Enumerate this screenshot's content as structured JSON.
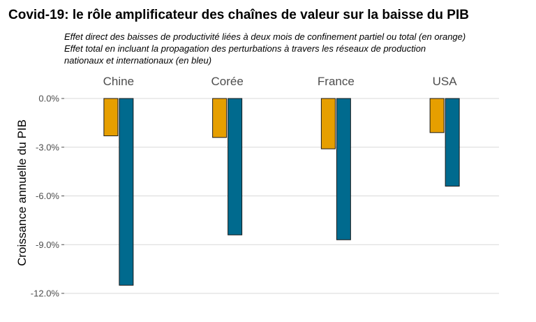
{
  "chart_data": {
    "type": "bar",
    "title": "Covid-19: le rôle amplificateur des chaînes de valeur sur la baisse du PIB",
    "subtitle": [
      "Effet direct des baisses de productivité liées à deux mois de confinement partiel ou total (en orange)",
      "Effet total en incluant la propagation des perturbations à travers les réseaux de production",
      "nationaux et internationaux (en bleu)"
    ],
    "ylabel": "Croissance annuelle du PIB",
    "xlabel": "",
    "categories": [
      "Chine",
      "Corée",
      "France",
      "USA"
    ],
    "series": [
      {
        "values": [
          -2.3,
          -2.4,
          -3.1,
          -2.1
        ],
        "color": "#E69F00"
      },
      {
        "values": [
          -11.5,
          -8.4,
          -8.7,
          -5.4
        ],
        "color": "#006A8E"
      }
    ],
    "yticks": [
      0,
      -3,
      -6,
      -9,
      -12
    ],
    "ytick_labels": [
      "0.0%",
      "-3.0%",
      "-6.0%",
      "-9.0%",
      "-12.0%"
    ],
    "ylim": [
      -12,
      0
    ],
    "grid": true,
    "legend": "none"
  }
}
